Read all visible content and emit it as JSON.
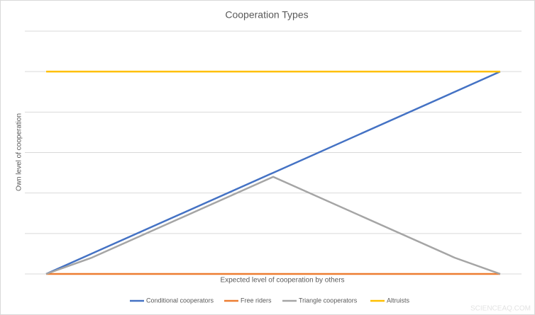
{
  "chart_data": {
    "type": "line",
    "title": "Cooperation Types",
    "x_label": "Expected level of cooperation by others",
    "y_label": "Own level of cooperation",
    "x": [
      0,
      1,
      5,
      9,
      10
    ],
    "series": [
      {
        "name": "Conditional cooperators",
        "color": "#4472c4",
        "values": [
          0,
          0.5,
          2.5,
          4.5,
          5
        ]
      },
      {
        "name": "Free riders",
        "color": "#ed7d31",
        "values": [
          0,
          0,
          0,
          0,
          0
        ]
      },
      {
        "name": "Triangle cooperators",
        "color": "#a5a5a5",
        "values": [
          0,
          0.4,
          2.4,
          0.4,
          0
        ]
      },
      {
        "name": "Altruists",
        "color": "#ffc000",
        "values": [
          5,
          5,
          5,
          5,
          5
        ]
      }
    ],
    "xlim": [
      -0.47,
      10.47
    ],
    "ylim": [
      0,
      6
    ],
    "yticks": [
      0,
      1,
      2,
      3,
      4,
      5,
      6
    ],
    "grid": true,
    "legend": "bottom"
  },
  "watermark": "SCIENCEAQ.COM"
}
